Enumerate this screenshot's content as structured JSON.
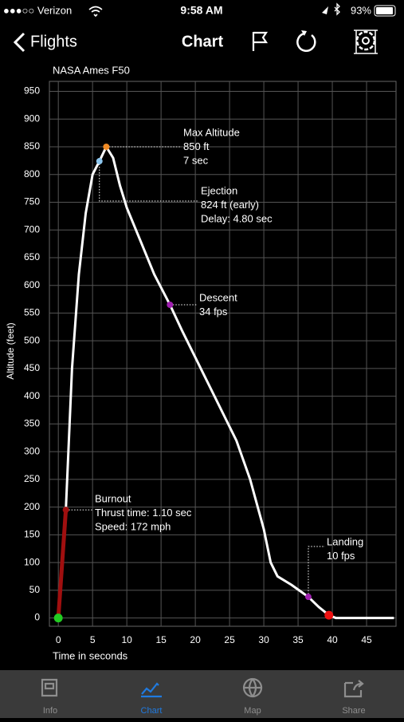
{
  "status_bar": {
    "carrier": "●●●○○ Verizon",
    "time": "9:58 AM",
    "battery": "93%"
  },
  "nav": {
    "back": "Flights",
    "title": "Chart"
  },
  "chart_data": {
    "type": "line",
    "title": "NASA Ames F50",
    "xlabel": "Time in seconds",
    "ylabel": "Altitude (feet)",
    "xlim": [
      -1.3,
      49.3
    ],
    "ylim": [
      -15,
      968
    ],
    "xticks": [
      0,
      5,
      10,
      15,
      20,
      25,
      30,
      35,
      40,
      45
    ],
    "yticks": [
      0,
      50,
      100,
      150,
      200,
      250,
      300,
      350,
      400,
      450,
      500,
      550,
      600,
      650,
      700,
      750,
      800,
      850,
      900,
      950
    ],
    "grid": true,
    "series": [
      {
        "color": "#ffffff",
        "x": [
          1.1,
          2,
          3,
          4,
          5,
          6,
          7,
          8,
          9,
          10,
          12,
          14,
          16.3,
          18,
          20,
          22,
          24,
          26,
          28,
          30,
          31,
          32,
          34,
          36.5,
          38,
          39.5,
          40.5,
          45,
          49
        ],
        "values": [
          195,
          450,
          620,
          730,
          800,
          824,
          850,
          830,
          780,
          740,
          680,
          620,
          565,
          520,
          470,
          420,
          370,
          320,
          250,
          160,
          100,
          75,
          60,
          38,
          20,
          5,
          0,
          0,
          0
        ]
      },
      {
        "color": "#a00f0f",
        "x": [
          0,
          1.1
        ],
        "values": [
          0,
          195
        ]
      }
    ],
    "events": [
      {
        "x": 0,
        "y": 0,
        "color": "#22cc22"
      },
      {
        "x": 1.1,
        "y": 195,
        "color": "#a00f0f",
        "label": [
          "Burnout",
          "Thrust time: 1.10 sec",
          "Speed: 172 mph"
        ]
      },
      {
        "x": 6,
        "y": 824,
        "color": "#8ec8f0",
        "label": [
          "Ejection",
          "824 ft (early)",
          "Delay:  4.80 sec"
        ]
      },
      {
        "x": 7,
        "y": 850,
        "color": "#f08a24",
        "label": [
          "Max Altitude",
          "850 ft",
          "7  sec"
        ]
      },
      {
        "x": 16.3,
        "y": 565,
        "color": "#a020b0",
        "label": [
          "Descent",
          "34 fps"
        ]
      },
      {
        "x": 36.5,
        "y": 38,
        "color": "#a020b0",
        "label": [
          "Landing",
          "10 fps"
        ]
      },
      {
        "x": 39.5,
        "y": 5,
        "color": "#ee1111"
      }
    ]
  },
  "tabs": [
    "Info",
    "Chart",
    "Map",
    "Share"
  ],
  "active_tab": 1
}
